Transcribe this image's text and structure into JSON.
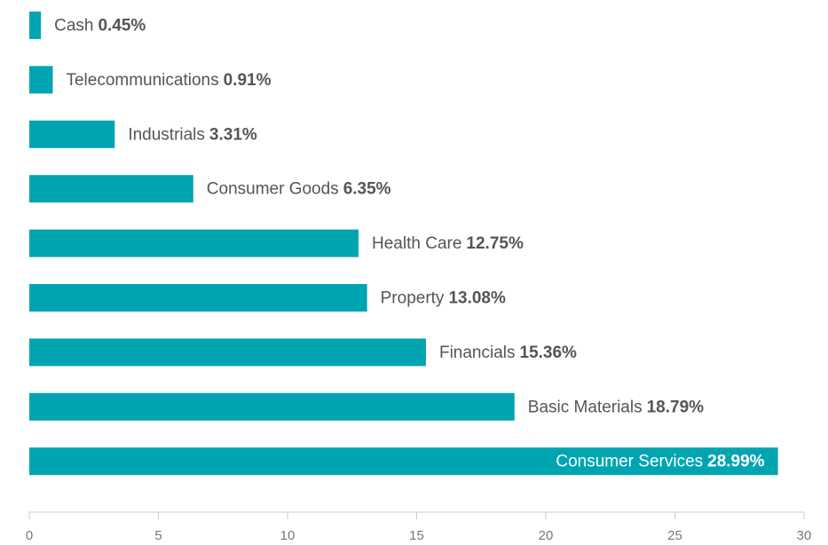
{
  "chart_data": {
    "type": "barh",
    "categories": [
      "Cash",
      "Telecommunications",
      "Industrials",
      "Consumer Goods",
      "Health Care",
      "Property",
      "Financials",
      "Basic Materials",
      "Consumer Services"
    ],
    "values": [
      0.45,
      0.91,
      3.31,
      6.35,
      12.75,
      13.08,
      15.36,
      18.79,
      28.99
    ],
    "value_labels": [
      "0.45%",
      "0.91%",
      "3.31%",
      "6.35%",
      "12.75%",
      "13.08%",
      "15.36%",
      "18.79%",
      "28.99%"
    ],
    "color": "#00a5b1",
    "xlim": [
      0,
      30
    ],
    "xticks": [
      0,
      5,
      10,
      15,
      20,
      25,
      30
    ]
  }
}
